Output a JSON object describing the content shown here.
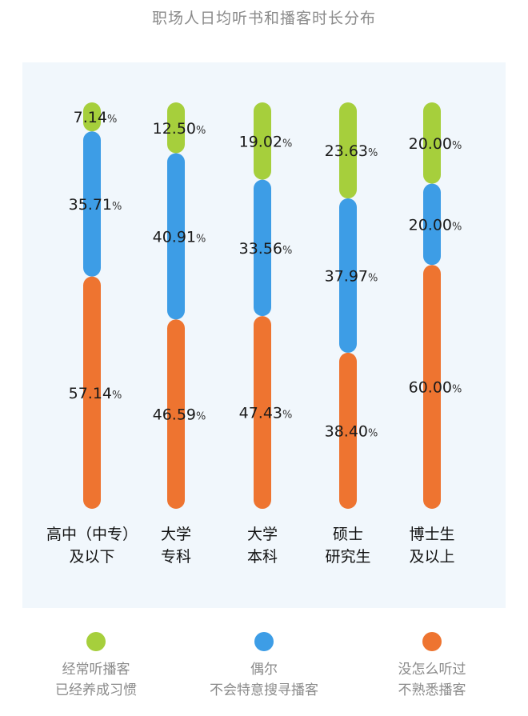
{
  "title": "职场人日均听书和播客时长分布",
  "colors": {
    "frequent": "#a6cf3c",
    "occasional": "#3d9de6",
    "rarely": "#ee7430",
    "panel_bg": "#f1f7fc"
  },
  "chart_data": {
    "type": "bar",
    "stacked": true,
    "categories": [
      {
        "line1": "高中（中专）",
        "line2": "及以下"
      },
      {
        "line1": "大学",
        "line2": "专科"
      },
      {
        "line1": "大学",
        "line2": "本科"
      },
      {
        "line1": "硕士",
        "line2": "研究生"
      },
      {
        "line1": "博士生",
        "line2": "及以上"
      }
    ],
    "series": [
      {
        "key": "frequent",
        "name": "经常听播客已经养成习惯",
        "values": [
          7.14,
          12.5,
          19.02,
          23.63,
          20.0
        ]
      },
      {
        "key": "occasional",
        "name": "偶尔不会特意搜寻播客",
        "values": [
          35.71,
          40.91,
          33.56,
          37.97,
          20.0
        ]
      },
      {
        "key": "rarely",
        "name": "没怎么听过不熟悉播客",
        "values": [
          57.14,
          46.59,
          47.43,
          38.4,
          60.0
        ]
      }
    ],
    "unit": "%",
    "ylim": [
      0,
      100
    ]
  },
  "legend": [
    {
      "key": "frequent",
      "line1": "经常听播客",
      "line2": "已经养成习惯"
    },
    {
      "key": "occasional",
      "line1": "偶尔",
      "line2": "不会特意搜寻播客"
    },
    {
      "key": "rarely",
      "line1": "没怎么听过",
      "line2": "不熟悉播客"
    }
  ]
}
